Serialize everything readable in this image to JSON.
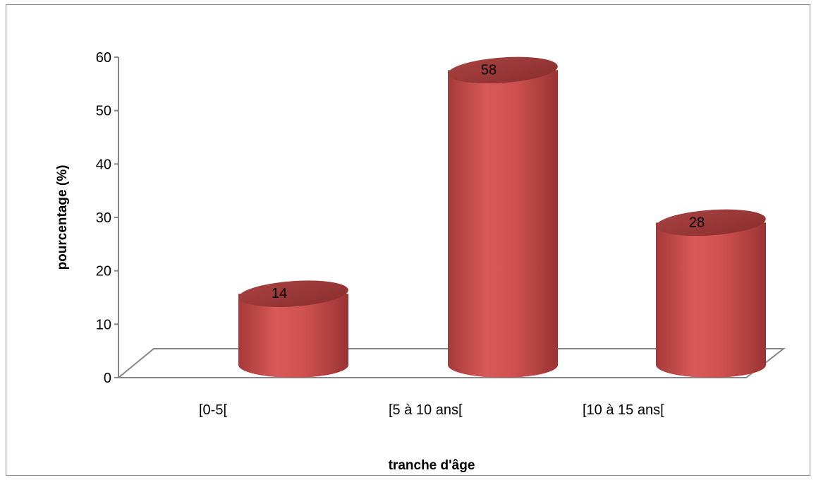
{
  "chart_data": {
    "type": "bar",
    "style": "3d-cylinder",
    "categories": [
      "[0-5[",
      "[5 à 10 ans[",
      "[10 à 15 ans["
    ],
    "values": [
      14,
      58,
      28
    ],
    "data_labels": [
      "14",
      "58",
      "28"
    ],
    "title": "",
    "xlabel": "tranche d'âge",
    "ylabel": "pourcentage (%)",
    "ylim": [
      0,
      60
    ],
    "yticks": [
      0,
      10,
      20,
      30,
      40,
      50,
      60
    ],
    "grid": false,
    "legend": "none",
    "bar_color": "#c9504f",
    "bar_top_color": "#9b3736"
  }
}
